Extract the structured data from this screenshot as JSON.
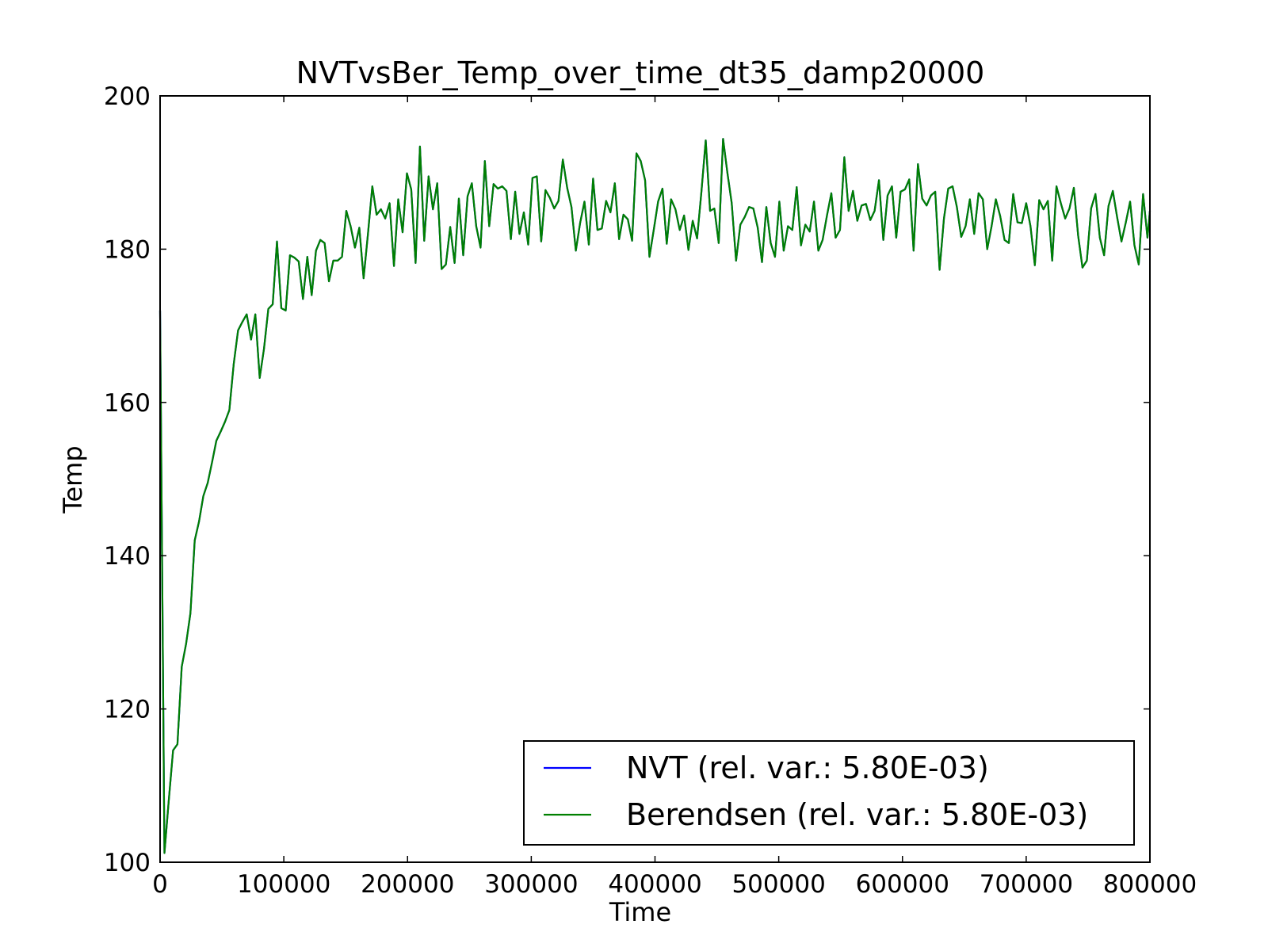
{
  "chart_data": {
    "type": "line",
    "title": "NVTvsBer_Temp_over_time_dt35_damp20000",
    "xlabel": "Time",
    "ylabel": "Temp",
    "xlim": [
      0,
      800000
    ],
    "ylim": [
      100,
      200
    ],
    "xticks": [
      0,
      100000,
      200000,
      300000,
      400000,
      500000,
      600000,
      700000,
      800000
    ],
    "xtick_labels": [
      "0",
      "100000",
      "200000",
      "300000",
      "400000",
      "500000",
      "600000",
      "700000",
      "800000"
    ],
    "yticks": [
      100,
      120,
      140,
      160,
      180,
      200
    ],
    "ytick_labels": [
      "100",
      "120",
      "140",
      "160",
      "180",
      "200"
    ],
    "grid": false,
    "legend_position": "bottom-right",
    "series": [
      {
        "name": "NVT (rel. var.: 5.80E-03)",
        "color": "#0000ff",
        "x": [
          0,
          3500,
          7000,
          10500,
          14000,
          17500,
          21000,
          24500,
          28000,
          31500,
          35000,
          38500,
          42000,
          45500,
          49000,
          52500,
          56000,
          59500,
          63000,
          66500,
          70000,
          73500,
          77000,
          80500,
          84000,
          87500,
          91000,
          94500,
          98000,
          101500,
          105000,
          108500,
          112000,
          115500,
          119000,
          122500,
          126000,
          129500,
          133000,
          136500,
          140000,
          143500,
          147000,
          150500,
          154000,
          157500,
          161000,
          164500,
          168000,
          171500,
          175000,
          178500,
          182000,
          185500,
          189000,
          192500,
          196000,
          199500,
          203000,
          206500,
          210000,
          213500,
          217000,
          220500,
          224000,
          227500,
          231000,
          234500,
          238000,
          241500,
          245000,
          248500,
          252000,
          255500,
          259000,
          262500,
          266000,
          269500,
          273000,
          276500,
          280000,
          283500,
          287000,
          290500,
          294000,
          297500,
          301000,
          304500,
          308000,
          311500,
          315000,
          318500,
          322000,
          325500,
          329000,
          332500,
          336000,
          339500,
          343000,
          346500,
          350000,
          353500,
          357000,
          360500,
          364000,
          367500,
          371000,
          374500,
          378000,
          381500,
          385000,
          388500,
          392000,
          395500,
          399000,
          402500,
          406000,
          409500,
          413000,
          416500,
          420000,
          423500,
          427000,
          430500,
          434000,
          437500,
          441000,
          444500,
          448000,
          451500,
          455000,
          458500,
          462000,
          465500,
          469000,
          472500,
          476000,
          479500,
          483000,
          486500,
          490000,
          493500,
          497000,
          500500,
          504000,
          507500,
          511000,
          514500,
          518000,
          521500,
          525000,
          528500,
          532000,
          535500,
          539000,
          542500,
          546000,
          549500,
          553000,
          556500,
          560000,
          563500,
          567000,
          570500,
          574000,
          577500,
          581000,
          584500,
          588000,
          591500,
          595000,
          598500,
          602000,
          605500,
          609000,
          612500,
          616000,
          619500,
          623000,
          626500,
          630000,
          633500,
          637000,
          640500,
          644000,
          647500,
          651000,
          654500,
          658000,
          661500,
          665000,
          668500,
          672000,
          675500,
          679000,
          682500,
          686000,
          689500,
          693000,
          696500,
          700000,
          703500,
          707000,
          710500,
          714000,
          717500,
          721000,
          724500,
          728000,
          731500,
          735000,
          738500,
          742000,
          745500,
          749000,
          752500,
          756000,
          759500,
          763000,
          766500,
          770000,
          773500,
          777000,
          780500,
          784000,
          787500,
          791000,
          794500,
          798000,
          800000
        ],
        "y": [
          172,
          101.2,
          108,
          114.6,
          115.4,
          125.5,
          128.5,
          132.5,
          142,
          144.5,
          147.8,
          149.5,
          152.2,
          155,
          156.2,
          157.5,
          159,
          165,
          169.4,
          170.5,
          171.5,
          168.2,
          171.5,
          163.2,
          167,
          172.2,
          172.8,
          181,
          172.3,
          172,
          179.2,
          178.9,
          178.4,
          173.5,
          179,
          174,
          179.8,
          181.2,
          180.8,
          175.8,
          178.5,
          178.5,
          179,
          185,
          183,
          180.2,
          182.8,
          176.2,
          182,
          188.2,
          184.5,
          185.2,
          184,
          186,
          177.8,
          186.5,
          182.2,
          189.9,
          187.8,
          178.2,
          193.4,
          181.1,
          189.5,
          185.2,
          188.6,
          177.4,
          178,
          182.9,
          178.2,
          186.6,
          179.2,
          186.9,
          188.6,
          183,
          180.2,
          191.5,
          183,
          188.5,
          187.9,
          188.2,
          187.6,
          181.3,
          187.5,
          182,
          184.8,
          180.6,
          189.3,
          189.5,
          181,
          187.7,
          186.7,
          185.3,
          186.3,
          191.7,
          188,
          185.5,
          179.8,
          183.4,
          186.2,
          180.6,
          189.2,
          182.5,
          182.7,
          186.3,
          184.8,
          188.6,
          181.3,
          184.5,
          183.9,
          181.1,
          192.5,
          191.5,
          189,
          179,
          182.5,
          186.2,
          187.9,
          180.7,
          186.5,
          185.2,
          182.5,
          184.4,
          179.9,
          183.7,
          181.4,
          187.4,
          194.2,
          185,
          185.3,
          180.8,
          194.4,
          190,
          186,
          178.5,
          183.2,
          184.2,
          185.5,
          185.3,
          182.8,
          178.3,
          185.5,
          180.8,
          179,
          186.2,
          179.8,
          183,
          182.5,
          188.1,
          180.5,
          183.2,
          182.3,
          186.2,
          179.8,
          181.2,
          184.4,
          187.3,
          181.5,
          182.5,
          192,
          185,
          187.6,
          183.7,
          185.7,
          185.9,
          183.8,
          185,
          189,
          181.2,
          187,
          188.2,
          181.5,
          187.5,
          187.8,
          189.1,
          179.8,
          191.1,
          186.6,
          185.7,
          187,
          187.5,
          177.3,
          184,
          187.9,
          188.2,
          185.5,
          181.6,
          183,
          186.5,
          182,
          187.3,
          186.5,
          180,
          183,
          186.5,
          184.3,
          181.2,
          180.8,
          187.2,
          183.5,
          183.4,
          186,
          183,
          177.9,
          186.4,
          185.2,
          186.3,
          178.5,
          188.2,
          186,
          184,
          185.3,
          188,
          181.8,
          177.6,
          178.5,
          185.3,
          187.2,
          181.5,
          179.2,
          185.6,
          187.6,
          184.2,
          181,
          183.5,
          186.2,
          180.5,
          178,
          187.2,
          181.5,
          185
        ]
      },
      {
        "name": "Berendsen (rel. var.: 5.80E-03)",
        "color": "#008000",
        "x": [
          0,
          3500,
          7000,
          10500,
          14000,
          17500,
          21000,
          24500,
          28000,
          31500,
          35000,
          38500,
          42000,
          45500,
          49000,
          52500,
          56000,
          59500,
          63000,
          66500,
          70000,
          73500,
          77000,
          80500,
          84000,
          87500,
          91000,
          94500,
          98000,
          101500,
          105000,
          108500,
          112000,
          115500,
          119000,
          122500,
          126000,
          129500,
          133000,
          136500,
          140000,
          143500,
          147000,
          150500,
          154000,
          157500,
          161000,
          164500,
          168000,
          171500,
          175000,
          178500,
          182000,
          185500,
          189000,
          192500,
          196000,
          199500,
          203000,
          206500,
          210000,
          213500,
          217000,
          220500,
          224000,
          227500,
          231000,
          234500,
          238000,
          241500,
          245000,
          248500,
          252000,
          255500,
          259000,
          262500,
          266000,
          269500,
          273000,
          276500,
          280000,
          283500,
          287000,
          290500,
          294000,
          297500,
          301000,
          304500,
          308000,
          311500,
          315000,
          318500,
          322000,
          325500,
          329000,
          332500,
          336000,
          339500,
          343000,
          346500,
          350000,
          353500,
          357000,
          360500,
          364000,
          367500,
          371000,
          374500,
          378000,
          381500,
          385000,
          388500,
          392000,
          395500,
          399000,
          402500,
          406000,
          409500,
          413000,
          416500,
          420000,
          423500,
          427000,
          430500,
          434000,
          437500,
          441000,
          444500,
          448000,
          451500,
          455000,
          458500,
          462000,
          465500,
          469000,
          472500,
          476000,
          479500,
          483000,
          486500,
          490000,
          493500,
          497000,
          500500,
          504000,
          507500,
          511000,
          514500,
          518000,
          521500,
          525000,
          528500,
          532000,
          535500,
          539000,
          542500,
          546000,
          549500,
          553000,
          556500,
          560000,
          563500,
          567000,
          570500,
          574000,
          577500,
          581000,
          584500,
          588000,
          591500,
          595000,
          598500,
          602000,
          605500,
          609000,
          612500,
          616000,
          619500,
          623000,
          626500,
          630000,
          633500,
          637000,
          640500,
          644000,
          647500,
          651000,
          654500,
          658000,
          661500,
          665000,
          668500,
          672000,
          675500,
          679000,
          682500,
          686000,
          689500,
          693000,
          696500,
          700000,
          703500,
          707000,
          710500,
          714000,
          717500,
          721000,
          724500,
          728000,
          731500,
          735000,
          738500,
          742000,
          745500,
          749000,
          752500,
          756000,
          759500,
          763000,
          766500,
          770000,
          773500,
          777000,
          780500,
          784000,
          787500,
          791000,
          794500,
          798000,
          800000
        ],
        "y": [
          172,
          101.2,
          108,
          114.6,
          115.4,
          125.5,
          128.5,
          132.5,
          142,
          144.5,
          147.8,
          149.5,
          152.2,
          155,
          156.2,
          157.5,
          159,
          165,
          169.4,
          170.5,
          171.5,
          168.2,
          171.5,
          163.2,
          167,
          172.2,
          172.8,
          181,
          172.3,
          172,
          179.2,
          178.9,
          178.4,
          173.5,
          179,
          174,
          179.8,
          181.2,
          180.8,
          175.8,
          178.5,
          178.5,
          179,
          185,
          183,
          180.2,
          182.8,
          176.2,
          182,
          188.2,
          184.5,
          185.2,
          184,
          186,
          177.8,
          186.5,
          182.2,
          189.9,
          187.8,
          178.2,
          193.4,
          181.1,
          189.5,
          185.2,
          188.6,
          177.4,
          178,
          182.9,
          178.2,
          186.6,
          179.2,
          186.9,
          188.6,
          183,
          180.2,
          191.5,
          183,
          188.5,
          187.9,
          188.2,
          187.6,
          181.3,
          187.5,
          182,
          184.8,
          180.6,
          189.3,
          189.5,
          181,
          187.7,
          186.7,
          185.3,
          186.3,
          191.7,
          188,
          185.5,
          179.8,
          183.4,
          186.2,
          180.6,
          189.2,
          182.5,
          182.7,
          186.3,
          184.8,
          188.6,
          181.3,
          184.5,
          183.9,
          181.1,
          192.5,
          191.5,
          189,
          179,
          182.5,
          186.2,
          187.9,
          180.7,
          186.5,
          185.2,
          182.5,
          184.4,
          179.9,
          183.7,
          181.4,
          187.4,
          194.2,
          185,
          185.3,
          180.8,
          194.4,
          190,
          186,
          178.5,
          183.2,
          184.2,
          185.5,
          185.3,
          182.8,
          178.3,
          185.5,
          180.8,
          179,
          186.2,
          179.8,
          183,
          182.5,
          188.1,
          180.5,
          183.2,
          182.3,
          186.2,
          179.8,
          181.2,
          184.4,
          187.3,
          181.5,
          182.5,
          192,
          185,
          187.6,
          183.7,
          185.7,
          185.9,
          183.8,
          185,
          189,
          181.2,
          187,
          188.2,
          181.5,
          187.5,
          187.8,
          189.1,
          179.8,
          191.1,
          186.6,
          185.7,
          187,
          187.5,
          177.3,
          184,
          187.9,
          188.2,
          185.5,
          181.6,
          183,
          186.5,
          182,
          187.3,
          186.5,
          180,
          183,
          186.5,
          184.3,
          181.2,
          180.8,
          187.2,
          183.5,
          183.4,
          186,
          183,
          177.9,
          186.4,
          185.2,
          186.3,
          178.5,
          188.2,
          186,
          184,
          185.3,
          188,
          181.8,
          177.6,
          178.5,
          185.3,
          187.2,
          181.5,
          179.2,
          185.6,
          187.6,
          184.2,
          181,
          183.5,
          186.2,
          180.5,
          178,
          187.2,
          181.5,
          185
        ]
      }
    ]
  }
}
